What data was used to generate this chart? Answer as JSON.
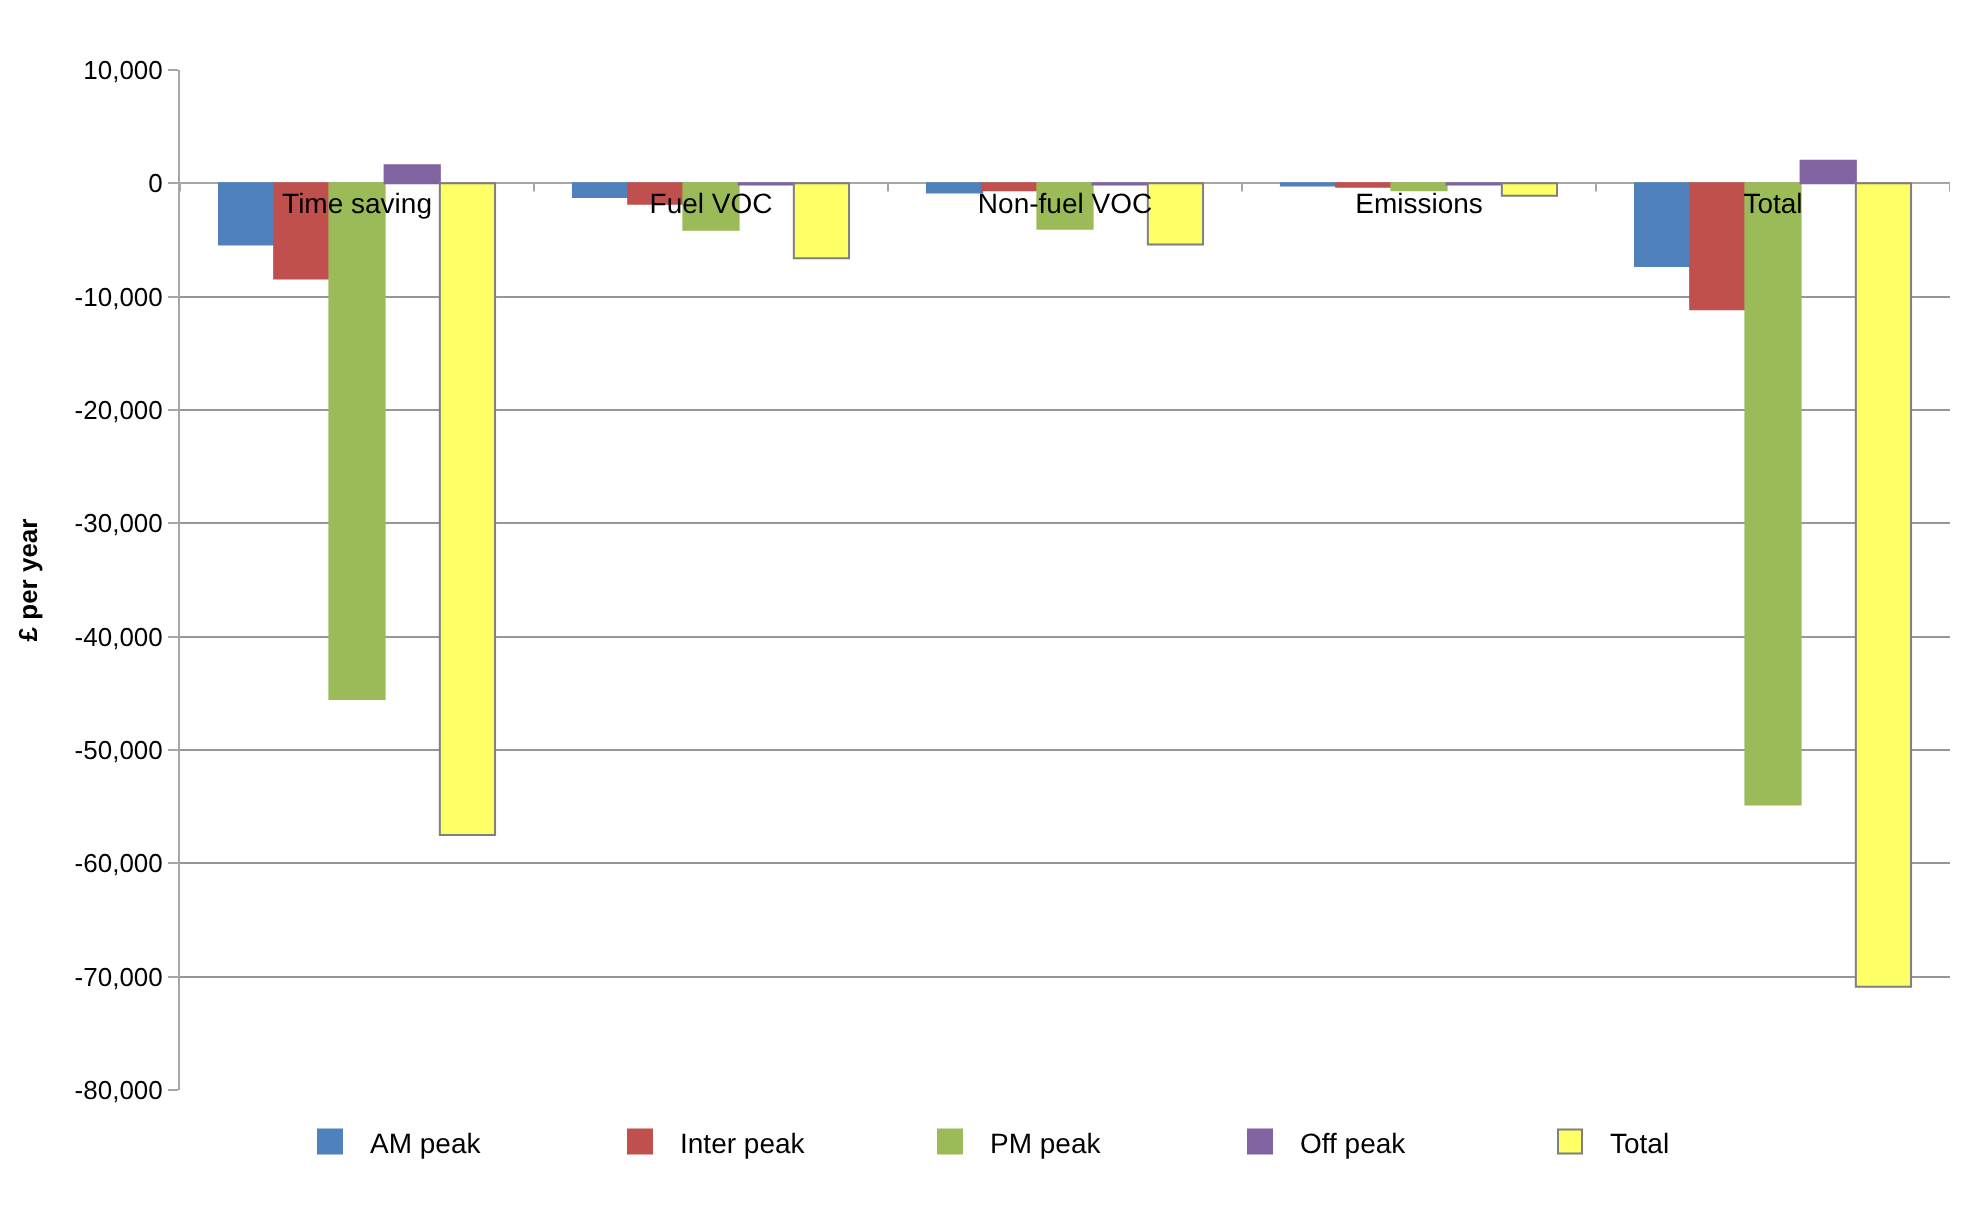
{
  "chart_data": {
    "type": "bar",
    "ylabel": "£ per year",
    "categories": [
      "Time saving",
      "Fuel VOC",
      "Non-fuel VOC",
      "Emissions",
      "Total"
    ],
    "series": [
      {
        "name": "AM peak",
        "color": "#4f81bd",
        "values": [
          -5400,
          -1200,
          -800,
          -200,
          -7300
        ]
      },
      {
        "name": "Inter peak",
        "color": "#c0504d",
        "values": [
          -8400,
          -1800,
          -600,
          -300,
          -11100
        ]
      },
      {
        "name": "PM peak",
        "color": "#9bbb59",
        "values": [
          -45500,
          -4100,
          -4000,
          -600,
          -54800
        ]
      },
      {
        "name": "Off peak",
        "color": "#8064a2",
        "values": [
          1600,
          -100,
          -100,
          -100,
          2000
        ]
      },
      {
        "name": "Total",
        "color": "#ffff66",
        "values": [
          -57500,
          -6600,
          -5400,
          -1100,
          -70900
        ]
      }
    ],
    "ylim": [
      -80000,
      10000
    ],
    "yticks": [
      {
        "value": -80000,
        "label": "-80,000"
      },
      {
        "value": -70000,
        "label": "-70,000"
      },
      {
        "value": -60000,
        "label": "-60,000"
      },
      {
        "value": -50000,
        "label": "-50,000"
      },
      {
        "value": -40000,
        "label": "-40,000"
      },
      {
        "value": -30000,
        "label": "-30,000"
      },
      {
        "value": -20000,
        "label": "-20,000"
      },
      {
        "value": -10000,
        "label": "-10,000"
      },
      {
        "value": 0,
        "label": "0"
      },
      {
        "value": 10000,
        "label": "10,000"
      }
    ],
    "grid": "y",
    "legend": "bottom"
  }
}
